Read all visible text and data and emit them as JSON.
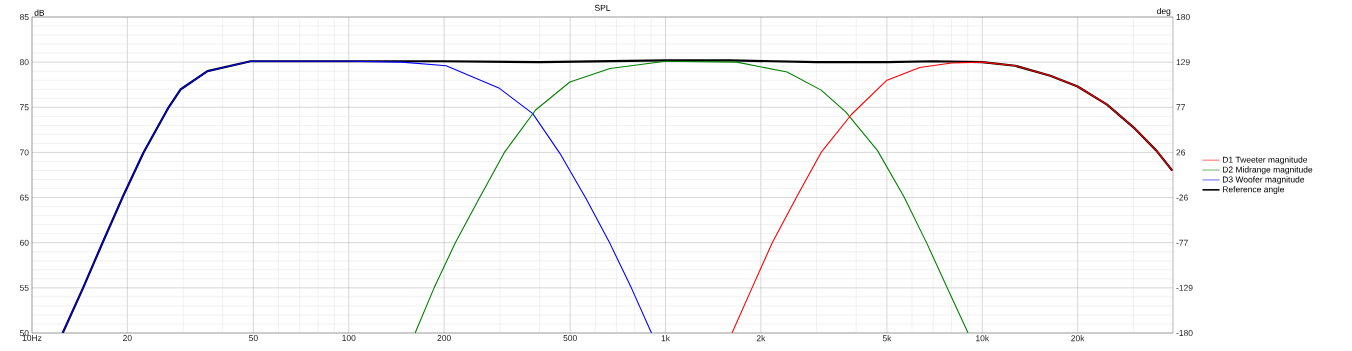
{
  "chart_data": {
    "type": "line",
    "title": "SPL",
    "ylabel": "dB",
    "y2label": "deg",
    "log": "x",
    "grid": true,
    "legend": "right",
    "marker": "none",
    "line_style": "solid",
    "xlim": [
      10,
      40000
    ],
    "ylim": [
      50,
      85
    ],
    "xticks": [
      {
        "value": 10,
        "label": "10Hz"
      },
      20,
      {
        "value": 30,
        "label": null
      },
      {
        "value": 40,
        "label": null
      },
      50,
      {
        "value": 60,
        "label": null
      },
      {
        "value": 70,
        "label": null
      },
      {
        "value": 80,
        "label": null
      },
      {
        "value": 90,
        "label": null
      },
      100,
      200,
      {
        "value": 300,
        "label": null
      },
      {
        "value": 400,
        "label": null
      },
      500,
      {
        "value": 600,
        "label": null
      },
      {
        "value": 700,
        "label": null
      },
      {
        "value": 800,
        "label": null
      },
      {
        "value": 900,
        "label": null
      },
      {
        "value": 1000,
        "label": "1k"
      },
      {
        "value": 2000,
        "label": "2k"
      },
      {
        "value": 3000,
        "label": null
      },
      {
        "value": 4000,
        "label": null
      },
      {
        "value": 5000,
        "label": "5k"
      },
      {
        "value": 6000,
        "label": null
      },
      {
        "value": 7000,
        "label": null
      },
      {
        "value": 8000,
        "label": null
      },
      {
        "value": 9000,
        "label": null
      },
      {
        "value": 10000,
        "label": "10k"
      },
      {
        "value": 20000,
        "label": "20k"
      },
      {
        "value": 30000,
        "label": null
      }
    ],
    "yticks": [
      50,
      55,
      60,
      65,
      70,
      75,
      80,
      85
    ],
    "y2lim": [
      -180,
      180
    ],
    "y2ticks": [
      -180,
      {
        "value": -128.57,
        "label": "-129"
      },
      {
        "value": -77.14,
        "label": "-77"
      },
      {
        "value": -25.71,
        "label": "-26"
      },
      {
        "value": 25.71,
        "label": "26"
      },
      {
        "value": 77.14,
        "label": "77"
      },
      {
        "value": 128.57,
        "label": "129"
      },
      180
    ],
    "series": [
      {
        "name": "D1 Tweeter magnitude",
        "color": "#ff0000",
        "x": [
          1622,
          1876,
          2173,
          2588,
          3100,
          3864,
          5000,
          6350,
          8000,
          10000,
          12700,
          16400,
          20000,
          24770,
          30400,
          35460,
          39800
        ],
        "values": [
          50,
          55,
          60,
          65,
          70,
          74.2,
          78.0,
          79.4,
          79.9,
          80.0,
          79.6,
          78.5,
          77.3,
          75.3,
          72.6,
          70.2,
          68.0
        ]
      },
      {
        "name": "D2 Midrange magnitude",
        "color": "#008000",
        "x": [
          162,
          186,
          217,
          259,
          310,
          389,
          499,
          668,
          1000,
          1679,
          2420,
          3100,
          3705,
          4670,
          5660,
          6690,
          7800,
          9020
        ],
        "values": [
          50,
          55,
          60,
          65,
          70,
          74.7,
          77.8,
          79.3,
          80.1,
          80.0,
          78.9,
          76.9,
          74.5,
          70.2,
          65.1,
          59.9,
          54.8,
          50
        ]
      },
      {
        "name": "D3 Woofer magnitude",
        "color": "#0000ff",
        "x": [
          12.5,
          14.5,
          16.7,
          19.3,
          22.5,
          27,
          29.5,
          35.8,
          49,
          100,
          147,
          203,
          299,
          381,
          464,
          561,
          668,
          780,
          903
        ],
        "values": [
          50,
          55,
          60,
          65,
          70,
          75,
          77,
          79,
          80.1,
          80.1,
          80.0,
          79.6,
          77.1,
          74.3,
          69.9,
          64.9,
          59.9,
          55.0,
          50
        ]
      },
      {
        "name": "Reference angle",
        "color": "#000000",
        "x": [
          12.5,
          14.5,
          16.7,
          19.3,
          22.5,
          27,
          29.5,
          35.8,
          49,
          100,
          200,
          400,
          1000,
          1600,
          3000,
          5000,
          7000,
          10000,
          12700,
          16400,
          20000,
          24770,
          30400,
          35460,
          39800
        ],
        "values": [
          50,
          55,
          60,
          65,
          70,
          75,
          77,
          79,
          80.1,
          80.1,
          80.1,
          80.0,
          80.2,
          80.2,
          80.0,
          80.0,
          80.1,
          80.0,
          79.6,
          78.5,
          77.3,
          75.3,
          72.6,
          70.2,
          68.0
        ]
      }
    ]
  }
}
